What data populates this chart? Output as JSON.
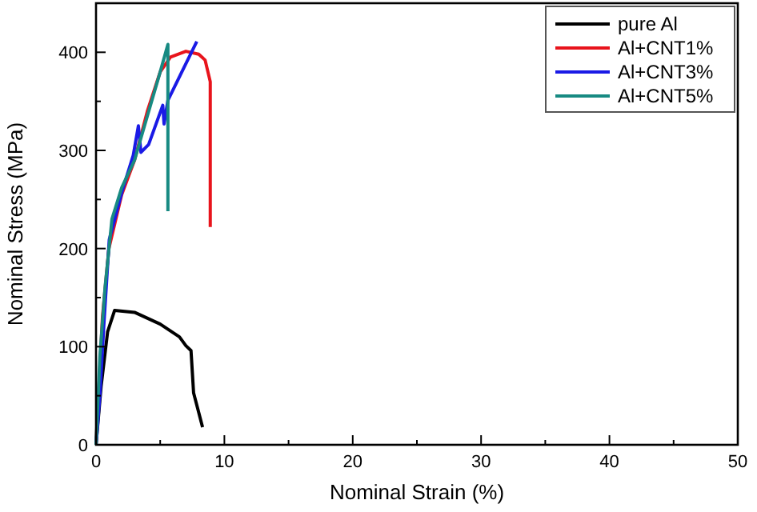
{
  "chart_data": {
    "type": "line",
    "xlabel": "Nominal Strain (%)",
    "ylabel": "Nominal Stress (MPa)",
    "xlim": [
      0,
      50
    ],
    "ylim": [
      0,
      450
    ],
    "xticks": [
      0,
      {
        "value": 5,
        "label": null
      },
      10,
      {
        "value": 15,
        "label": null
      },
      20,
      {
        "value": 25,
        "label": null
      },
      30,
      {
        "value": 35,
        "label": null
      },
      40,
      {
        "value": 45,
        "label": null
      },
      50
    ],
    "yticks": [
      0,
      {
        "value": 50,
        "label": null
      },
      100,
      {
        "value": 150,
        "label": null
      },
      200,
      {
        "value": 250,
        "label": null
      },
      300,
      {
        "value": 350,
        "label": null
      },
      400
    ],
    "grid": false,
    "legend": "top right",
    "marker": "none",
    "line_style": "solid",
    "series": [
      {
        "name": "pure Al",
        "color": "#000000",
        "x": [
          0,
          0.4,
          0.9,
          1.45,
          3,
          5,
          6.5,
          7,
          7.4,
          7.6,
          8.3
        ],
        "values": [
          0,
          60,
          115,
          137,
          135,
          123,
          110,
          101,
          96,
          53,
          18
        ]
      },
      {
        "name": "Al+CNT1%",
        "color": "#e8141c",
        "x": [
          0,
          0.5,
          1,
          2,
          3,
          4,
          5,
          5.8,
          7,
          8,
          8.5,
          8.9,
          8.9
        ],
        "values": [
          0,
          130,
          200,
          255,
          290,
          340,
          380,
          395,
          401,
          398,
          392,
          370,
          222
        ]
      },
      {
        "name": "Al+CNT3%",
        "color": "#1a1ae6",
        "x": [
          0,
          0.3,
          0.6,
          1.03,
          2.07,
          2.9,
          3.3,
          3.5,
          4.1,
          5.2,
          5.3,
          5.6,
          7.85
        ],
        "values": [
          0,
          50,
          120,
          209,
          260,
          295,
          325,
          298,
          306,
          346,
          327,
          351,
          411
        ]
      },
      {
        "name": "Al+CNT5%",
        "color": "#178a82",
        "x": [
          0,
          0.3,
          0.7,
          1.24,
          2,
          3,
          4,
          5,
          5.6,
          5.6
        ],
        "values": [
          0,
          90,
          160,
          230,
          262,
          290,
          335,
          380,
          408,
          238
        ]
      }
    ]
  }
}
